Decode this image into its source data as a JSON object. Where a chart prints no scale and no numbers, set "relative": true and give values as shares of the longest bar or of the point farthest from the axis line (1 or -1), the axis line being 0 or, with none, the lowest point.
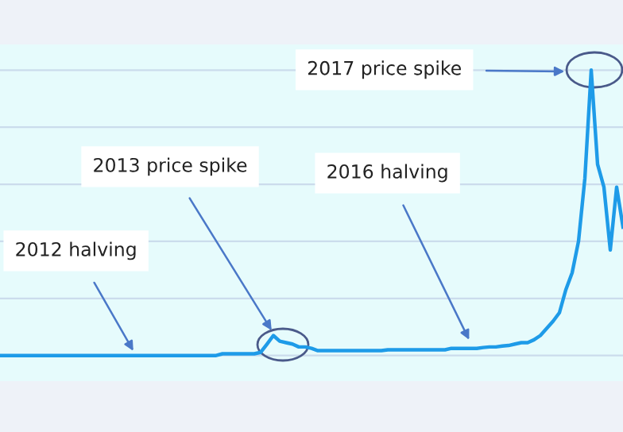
{
  "chart_data": {
    "type": "line",
    "relative": true,
    "grid": "y",
    "color": "#1e9be8",
    "categories": [
      null,
      null,
      null,
      null,
      null,
      null,
      null,
      null,
      null,
      null,
      null,
      null,
      null,
      null,
      null,
      null,
      null,
      null,
      null,
      null,
      null,
      null,
      null,
      null,
      null,
      null,
      null,
      null,
      null,
      null,
      null,
      null,
      null,
      null,
      null,
      null,
      null,
      null,
      null,
      null,
      null,
      null,
      null,
      null,
      null,
      null,
      null,
      null,
      null,
      null,
      null,
      null,
      null,
      null,
      null,
      null,
      null,
      null,
      null,
      null,
      null,
      null,
      null,
      null,
      null,
      null,
      null,
      null,
      null,
      null,
      null,
      null,
      null,
      null,
      null,
      null,
      null,
      null,
      null,
      null,
      null,
      null,
      null,
      null,
      null,
      null,
      null,
      null,
      null,
      null,
      null,
      null,
      null,
      null,
      null,
      null,
      null,
      null,
      null
    ],
    "values": [
      0,
      0,
      0,
      0,
      0,
      0,
      0,
      0,
      0,
      0,
      0,
      0,
      0,
      0,
      0,
      0,
      0,
      0,
      0,
      0,
      0,
      0,
      0,
      0,
      0,
      0,
      0,
      0,
      0,
      0,
      0,
      0,
      0,
      0,
      0,
      0.006,
      0.006,
      0.006,
      0.006,
      0.006,
      0.006,
      0.011,
      0.04,
      0.07,
      0.05,
      0.045,
      0.04,
      0.03,
      0.03,
      0.025,
      0.017,
      0.017,
      0.017,
      0.017,
      0.017,
      0.017,
      0.017,
      0.017,
      0.017,
      0.017,
      0.017,
      0.02,
      0.02,
      0.02,
      0.02,
      0.02,
      0.02,
      0.02,
      0.02,
      0.02,
      0.02,
      0.025,
      0.025,
      0.025,
      0.025,
      0.025,
      0.028,
      0.03,
      0.03,
      0.033,
      0.035,
      0.04,
      0.045,
      0.045,
      0.055,
      0.07,
      0.095,
      0.12,
      0.15,
      0.23,
      0.29,
      0.4,
      0.62,
      1,
      0.67,
      0.59,
      0.37,
      0.59,
      0.45
    ],
    "annotations": [
      "2012 halving",
      "2013 price spike",
      "2016 halving",
      "2017 price spike"
    ]
  }
}
